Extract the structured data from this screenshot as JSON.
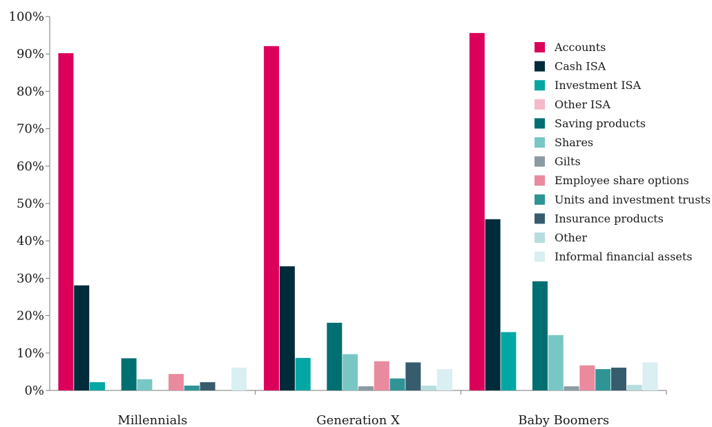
{
  "chart_data": {
    "type": "bar",
    "categories": [
      "Millennials",
      "Generation X",
      "Baby Boomers"
    ],
    "y_ticks": [
      "0%",
      "10%",
      "20%",
      "30%",
      "40%",
      "50%",
      "60%",
      "70%",
      "80%",
      "90%",
      "100%"
    ],
    "ylim": [
      0,
      100
    ],
    "grid": false,
    "legend_position": "top-right",
    "series": [
      {
        "name": "Accounts",
        "color": "#dc005a",
        "values": [
          90.2,
          92.1,
          95.6
        ]
      },
      {
        "name": "Cash ISA",
        "color": "#002b3a",
        "values": [
          28.1,
          33.2,
          45.8
        ]
      },
      {
        "name": "Investment ISA",
        "color": "#00a7a3",
        "values": [
          2.2,
          8.7,
          15.6
        ]
      },
      {
        "name": "Other ISA",
        "color": "#f5b9c9",
        "values": [
          0,
          0,
          0
        ]
      },
      {
        "name": "Saving products",
        "color": "#006f71",
        "values": [
          8.6,
          18.1,
          29.2
        ]
      },
      {
        "name": "Shares",
        "color": "#78c7c5",
        "values": [
          3.0,
          9.7,
          14.8
        ]
      },
      {
        "name": "Gilts",
        "color": "#8b9aa3",
        "values": [
          0,
          1.1,
          1.1
        ]
      },
      {
        "name": "Employee share options",
        "color": "#ea8a9e",
        "values": [
          4.4,
          7.8,
          6.7
        ]
      },
      {
        "name": "Units and investment trusts",
        "color": "#2f9496",
        "values": [
          1.3,
          3.2,
          5.7
        ]
      },
      {
        "name": "Insurance products",
        "color": "#375c6e",
        "values": [
          2.2,
          7.5,
          6.1
        ]
      },
      {
        "name": "Other",
        "color": "#b7dede",
        "values": [
          0,
          1.3,
          1.5
        ]
      },
      {
        "name": "Informal financial assets",
        "color": "#d9eff1",
        "values": [
          6.1,
          5.7,
          7.5
        ]
      }
    ]
  }
}
